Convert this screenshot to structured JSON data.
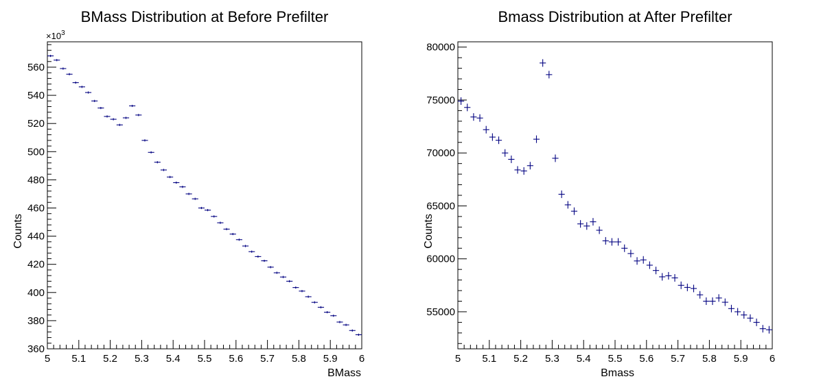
{
  "chart_data": [
    {
      "type": "scatter",
      "title": "BMass Distribution at Before Prefilter",
      "xlabel": "BMass",
      "ylabel": "Counts",
      "y_multiplier": "×10",
      "y_multiplier_exp": "3",
      "xlim": [
        5,
        6
      ],
      "ylim": [
        360,
        578
      ],
      "x_ticks": [
        "5",
        "5.1",
        "5.2",
        "5.3",
        "5.4",
        "5.5",
        "5.6",
        "5.7",
        "5.8",
        "5.9",
        "6"
      ],
      "y_ticks": [
        360,
        380,
        400,
        420,
        440,
        460,
        480,
        500,
        520,
        540,
        560
      ],
      "y_tick_labels": [
        "360",
        "380",
        "400",
        "420",
        "440",
        "460",
        "480",
        "500",
        "520",
        "540",
        "560"
      ],
      "marker_color": "#000080",
      "series": [
        {
          "x": [
            5.01,
            5.03,
            5.05,
            5.07,
            5.09,
            5.11,
            5.13,
            5.15,
            5.17,
            5.19,
            5.21,
            5.23,
            5.25,
            5.27,
            5.29,
            5.31,
            5.33,
            5.35,
            5.37,
            5.39,
            5.41,
            5.43,
            5.45,
            5.47,
            5.49,
            5.51,
            5.53,
            5.55,
            5.57,
            5.59,
            5.61,
            5.63,
            5.65,
            5.67,
            5.69,
            5.71,
            5.73,
            5.75,
            5.77,
            5.79,
            5.81,
            5.83,
            5.85,
            5.87,
            5.89,
            5.91,
            5.93,
            5.95,
            5.97,
            5.99
          ],
          "y": [
            568,
            565,
            559,
            555,
            549,
            546,
            542,
            536,
            531,
            525,
            523,
            519,
            524,
            532.5,
            526,
            508,
            499.5,
            492.5,
            487,
            482,
            478,
            475,
            470,
            466.5,
            460,
            458.5,
            454,
            449.5,
            445,
            441.5,
            437.5,
            433,
            429,
            425.5,
            422.5,
            418,
            414,
            411,
            408,
            403.5,
            401,
            397,
            393,
            389.5,
            386,
            383.5,
            379,
            377,
            373,
            370
          ]
        }
      ]
    },
    {
      "type": "scatter",
      "title": "Bmass Distribution at After Prefilter",
      "xlabel": "Bmass",
      "ylabel": "Counts",
      "xlim": [
        5,
        6
      ],
      "ylim": [
        51500,
        80500
      ],
      "x_ticks": [
        "5",
        "5.1",
        "5.2",
        "5.3",
        "5.4",
        "5.5",
        "5.6",
        "5.7",
        "5.8",
        "5.9",
        "6"
      ],
      "y_ticks": [
        55000,
        60000,
        65000,
        70000,
        75000,
        80000
      ],
      "y_tick_labels": [
        "55000",
        "60000",
        "65000",
        "70000",
        "75000",
        "80000"
      ],
      "marker_color": "#000080",
      "series": [
        {
          "x": [
            5.01,
            5.03,
            5.05,
            5.07,
            5.09,
            5.11,
            5.13,
            5.15,
            5.17,
            5.19,
            5.21,
            5.23,
            5.25,
            5.27,
            5.29,
            5.31,
            5.33,
            5.35,
            5.37,
            5.39,
            5.41,
            5.43,
            5.45,
            5.47,
            5.49,
            5.51,
            5.53,
            5.55,
            5.57,
            5.59,
            5.61,
            5.63,
            5.65,
            5.67,
            5.69,
            5.71,
            5.73,
            5.75,
            5.77,
            5.79,
            5.81,
            5.83,
            5.85,
            5.87,
            5.89,
            5.91,
            5.93,
            5.95,
            5.97,
            5.99
          ],
          "y": [
            74900,
            74300,
            73400,
            73300,
            72200,
            71500,
            71200,
            70000,
            69400,
            68400,
            68300,
            68800,
            71300,
            78500,
            77400,
            69500,
            66100,
            65100,
            64500,
            63300,
            63100,
            63500,
            62700,
            61700,
            61600,
            61600,
            61000,
            60500,
            59800,
            59900,
            59400,
            58900,
            58300,
            58400,
            58200,
            57500,
            57300,
            57200,
            56600,
            56000,
            56000,
            56300,
            55900,
            55300,
            55000,
            54700,
            54400,
            54000,
            53400,
            53300
          ]
        }
      ]
    }
  ]
}
